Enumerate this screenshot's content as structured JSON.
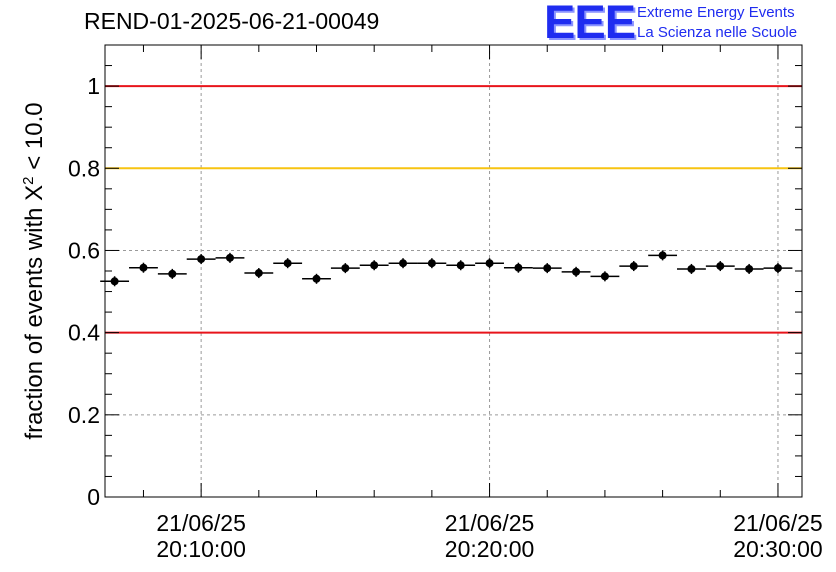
{
  "header": {
    "title": "REND-01-2025-06-21-00049"
  },
  "logo": {
    "mark": "EEE",
    "line1": "Extreme Energy Events",
    "line2": "La Scienza nelle Scuole"
  },
  "chart_data": {
    "type": "scatter",
    "title": "REND-01-2025-06-21-00049",
    "ylabel_prefix": "fraction of events with ",
    "ylabel_symbol": "X",
    "ylabel_sup": "2",
    "ylabel_suffix": " < 10.0",
    "ylim": [
      0,
      1.1
    ],
    "yticks": [
      0,
      0.2,
      0.4,
      0.6,
      0.8,
      1
    ],
    "ytick_labels": [
      "0",
      "0.2",
      "0.4",
      "0.6",
      "0.8",
      "1"
    ],
    "xlim": [
      "20:06:40",
      "20:30:50"
    ],
    "xticks": [
      {
        "time": "20:10:00",
        "date": "21/06/25",
        "clock": "20:10:00"
      },
      {
        "time": "20:20:00",
        "date": "21/06/25",
        "clock": "20:20:00"
      },
      {
        "time": "20:30:00",
        "date": "21/06/25",
        "clock": "20:30:00"
      }
    ],
    "grid": true,
    "reference_lines": [
      {
        "y": 1.0,
        "color": "#e8141b"
      },
      {
        "y": 0.8,
        "color": "#f7c411"
      },
      {
        "y": 0.4,
        "color": "#e8141b"
      }
    ],
    "bin_width_minutes": 1,
    "series": [
      {
        "x": [
          "20:07:00",
          "20:08:00",
          "20:09:00",
          "20:10:00",
          "20:11:00",
          "20:12:00",
          "20:13:00",
          "20:14:00",
          "20:15:00",
          "20:16:00",
          "20:17:00",
          "20:18:00",
          "20:19:00",
          "20:20:00",
          "20:21:00",
          "20:22:00",
          "20:23:00",
          "20:24:00",
          "20:25:00",
          "20:26:00",
          "20:27:00",
          "20:28:00",
          "20:29:00",
          "20:30:00"
        ],
        "y": [
          0.525,
          0.558,
          0.543,
          0.579,
          0.582,
          0.545,
          0.569,
          0.531,
          0.557,
          0.564,
          0.569,
          0.569,
          0.564,
          0.569,
          0.558,
          0.557,
          0.548,
          0.537,
          0.562,
          0.588,
          0.555,
          0.562,
          0.555,
          0.557
        ],
        "color": "#000000"
      }
    ]
  }
}
